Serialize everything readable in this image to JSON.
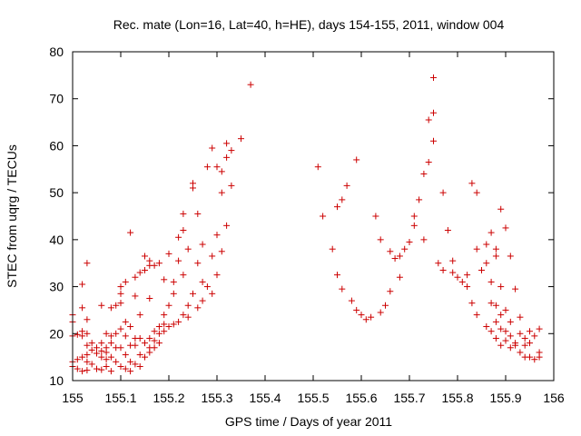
{
  "chart_data": {
    "type": "scatter",
    "title": "Rec. mate (Lon=16, Lat=40, h=HE), days 154-155, 2011, window 004",
    "xlabel": "GPS time / Days of year 2011",
    "ylabel": "STEC from uqrg / TECUs",
    "xlim": [
      155,
      156
    ],
    "ylim": [
      10,
      80
    ],
    "xticks": [
      155,
      155.1,
      155.2,
      155.3,
      155.4,
      155.5,
      155.6,
      155.7,
      155.8,
      155.9,
      156
    ],
    "xtick_labels": [
      "155",
      "155.1",
      "155.2",
      "155.3",
      "155.4",
      "155.5",
      "155.6",
      "155.7",
      "155.8",
      "155.9",
      "156"
    ],
    "yticks": [
      10,
      20,
      30,
      40,
      50,
      60,
      70,
      80
    ],
    "ytick_labels": [
      "10",
      "20",
      "30",
      "40",
      "50",
      "60",
      "70",
      "80"
    ],
    "marker": "+",
    "color": "#cc0000",
    "series": [
      {
        "name": "STEC",
        "points": [
          [
            155.0,
            22.5
          ],
          [
            155.0,
            24.0
          ],
          [
            155.0,
            19.5
          ],
          [
            155.0,
            14.0
          ],
          [
            155.0,
            13.0
          ],
          [
            155.01,
            14.5
          ],
          [
            155.01,
            12.5
          ],
          [
            155.01,
            19.8
          ],
          [
            155.02,
            30.5
          ],
          [
            155.02,
            25.5
          ],
          [
            155.02,
            20.5
          ],
          [
            155.02,
            19.5
          ],
          [
            155.02,
            15.0
          ],
          [
            155.02,
            12.0
          ],
          [
            155.03,
            35.0
          ],
          [
            155.03,
            23.0
          ],
          [
            155.03,
            20.0
          ],
          [
            155.03,
            17.5
          ],
          [
            155.03,
            15.5
          ],
          [
            155.03,
            14.0
          ],
          [
            155.03,
            12.2
          ],
          [
            155.04,
            18.0
          ],
          [
            155.04,
            16.5
          ],
          [
            155.04,
            13.5
          ],
          [
            155.05,
            17.0
          ],
          [
            155.05,
            15.8
          ],
          [
            155.05,
            12.5
          ],
          [
            155.06,
            26.0
          ],
          [
            155.06,
            18.0
          ],
          [
            155.06,
            16.3
          ],
          [
            155.06,
            15.0
          ],
          [
            155.06,
            12.3
          ],
          [
            155.07,
            20.0
          ],
          [
            155.07,
            17.0
          ],
          [
            155.07,
            16.0
          ],
          [
            155.07,
            14.5
          ],
          [
            155.07,
            13.0
          ],
          [
            155.08,
            25.5
          ],
          [
            155.08,
            19.5
          ],
          [
            155.08,
            18.0
          ],
          [
            155.08,
            15.0
          ],
          [
            155.08,
            12.0
          ],
          [
            155.09,
            26.0
          ],
          [
            155.09,
            20.0
          ],
          [
            155.09,
            17.0
          ],
          [
            155.09,
            14.0
          ],
          [
            155.1,
            30.0
          ],
          [
            155.1,
            28.5
          ],
          [
            155.1,
            26.5
          ],
          [
            155.1,
            21.0
          ],
          [
            155.1,
            17.0
          ],
          [
            155.1,
            13.0
          ],
          [
            155.11,
            31.0
          ],
          [
            155.11,
            22.5
          ],
          [
            155.11,
            19.5
          ],
          [
            155.11,
            15.5
          ],
          [
            155.11,
            12.5
          ],
          [
            155.12,
            41.5
          ],
          [
            155.12,
            21.5
          ],
          [
            155.12,
            17.5
          ],
          [
            155.12,
            14.0
          ],
          [
            155.12,
            12.0
          ],
          [
            155.13,
            32.0
          ],
          [
            155.13,
            28.0
          ],
          [
            155.13,
            19.0
          ],
          [
            155.13,
            17.5
          ],
          [
            155.13,
            13.5
          ],
          [
            155.14,
            33.0
          ],
          [
            155.14,
            24.0
          ],
          [
            155.14,
            19.0
          ],
          [
            155.14,
            15.5
          ],
          [
            155.14,
            13.0
          ],
          [
            155.15,
            36.5
          ],
          [
            155.15,
            33.5
          ],
          [
            155.15,
            18.0
          ],
          [
            155.15,
            15.0
          ],
          [
            155.16,
            35.5
          ],
          [
            155.16,
            34.5
          ],
          [
            155.16,
            27.5
          ],
          [
            155.16,
            19.0
          ],
          [
            155.16,
            17.0
          ],
          [
            155.16,
            16.0
          ],
          [
            155.17,
            34.5
          ],
          [
            155.17,
            20.5
          ],
          [
            155.17,
            18.5
          ],
          [
            155.17,
            17.0
          ],
          [
            155.18,
            35.0
          ],
          [
            155.18,
            21.5
          ],
          [
            155.18,
            20.0
          ],
          [
            155.18,
            18.0
          ],
          [
            155.19,
            31.5
          ],
          [
            155.19,
            24.0
          ],
          [
            155.19,
            22.0
          ],
          [
            155.19,
            20.5
          ],
          [
            155.2,
            37.0
          ],
          [
            155.2,
            26.0
          ],
          [
            155.2,
            21.5
          ],
          [
            155.21,
            31.0
          ],
          [
            155.21,
            28.5
          ],
          [
            155.21,
            22.0
          ],
          [
            155.22,
            40.5
          ],
          [
            155.22,
            35.5
          ],
          [
            155.22,
            22.5
          ],
          [
            155.23,
            45.5
          ],
          [
            155.23,
            42.0
          ],
          [
            155.23,
            32.5
          ],
          [
            155.23,
            24.0
          ],
          [
            155.24,
            38.0
          ],
          [
            155.24,
            26.0
          ],
          [
            155.24,
            23.5
          ],
          [
            155.25,
            52.0
          ],
          [
            155.25,
            51.0
          ],
          [
            155.25,
            28.5
          ],
          [
            155.26,
            45.5
          ],
          [
            155.26,
            35.0
          ],
          [
            155.26,
            25.5
          ],
          [
            155.27,
            39.0
          ],
          [
            155.27,
            31.0
          ],
          [
            155.27,
            27.0
          ],
          [
            155.28,
            55.5
          ],
          [
            155.28,
            30.0
          ],
          [
            155.29,
            59.5
          ],
          [
            155.29,
            36.5
          ],
          [
            155.29,
            28.5
          ],
          [
            155.3,
            55.5
          ],
          [
            155.3,
            41.0
          ],
          [
            155.3,
            32.5
          ],
          [
            155.31,
            54.5
          ],
          [
            155.31,
            50.0
          ],
          [
            155.31,
            37.5
          ],
          [
            155.32,
            60.5
          ],
          [
            155.32,
            57.5
          ],
          [
            155.32,
            43.0
          ],
          [
            155.33,
            59.0
          ],
          [
            155.33,
            51.5
          ],
          [
            155.35,
            61.5
          ],
          [
            155.37,
            73.0
          ],
          [
            155.51,
            55.5
          ],
          [
            155.52,
            45.0
          ],
          [
            155.54,
            38.0
          ],
          [
            155.55,
            32.5
          ],
          [
            155.55,
            47.0
          ],
          [
            155.56,
            48.5
          ],
          [
            155.56,
            29.5
          ],
          [
            155.57,
            51.5
          ],
          [
            155.58,
            27.0
          ],
          [
            155.59,
            57.0
          ],
          [
            155.59,
            25.0
          ],
          [
            155.6,
            24.0
          ],
          [
            155.61,
            23.0
          ],
          [
            155.62,
            23.5
          ],
          [
            155.63,
            45.0
          ],
          [
            155.64,
            24.5
          ],
          [
            155.64,
            40.0
          ],
          [
            155.65,
            26.0
          ],
          [
            155.66,
            37.5
          ],
          [
            155.66,
            29.0
          ],
          [
            155.67,
            36.0
          ],
          [
            155.68,
            32.0
          ],
          [
            155.68,
            36.5
          ],
          [
            155.69,
            38.0
          ],
          [
            155.7,
            39.5
          ],
          [
            155.71,
            45.0
          ],
          [
            155.71,
            43.0
          ],
          [
            155.72,
            48.5
          ],
          [
            155.73,
            54.0
          ],
          [
            155.73,
            40.0
          ],
          [
            155.74,
            56.5
          ],
          [
            155.74,
            65.5
          ],
          [
            155.75,
            74.5
          ],
          [
            155.75,
            67.0
          ],
          [
            155.75,
            61.0
          ],
          [
            155.76,
            35.0
          ],
          [
            155.77,
            50.0
          ],
          [
            155.77,
            33.5
          ],
          [
            155.78,
            42.0
          ],
          [
            155.79,
            35.5
          ],
          [
            155.79,
            33.0
          ],
          [
            155.8,
            32.0
          ],
          [
            155.81,
            31.0
          ],
          [
            155.82,
            32.5
          ],
          [
            155.82,
            30.0
          ],
          [
            155.83,
            52.0
          ],
          [
            155.83,
            26.5
          ],
          [
            155.84,
            50.0
          ],
          [
            155.84,
            38.0
          ],
          [
            155.84,
            24.0
          ],
          [
            155.85,
            33.5
          ],
          [
            155.86,
            39.0
          ],
          [
            155.86,
            35.0
          ],
          [
            155.86,
            21.5
          ],
          [
            155.87,
            41.5
          ],
          [
            155.87,
            31.0
          ],
          [
            155.87,
            26.5
          ],
          [
            155.87,
            20.5
          ],
          [
            155.88,
            38.0
          ],
          [
            155.88,
            36.5
          ],
          [
            155.88,
            26.0
          ],
          [
            155.88,
            22.5
          ],
          [
            155.88,
            19.0
          ],
          [
            155.89,
            46.5
          ],
          [
            155.89,
            30.0
          ],
          [
            155.89,
            24.0
          ],
          [
            155.89,
            21.0
          ],
          [
            155.89,
            17.5
          ],
          [
            155.9,
            42.5
          ],
          [
            155.9,
            25.0
          ],
          [
            155.9,
            20.5
          ],
          [
            155.9,
            18.5
          ],
          [
            155.91,
            36.5
          ],
          [
            155.91,
            22.5
          ],
          [
            155.91,
            19.5
          ],
          [
            155.91,
            17.0
          ],
          [
            155.92,
            29.5
          ],
          [
            155.92,
            18.0
          ],
          [
            155.92,
            17.5
          ],
          [
            155.93,
            23.5
          ],
          [
            155.93,
            20.0
          ],
          [
            155.93,
            16.0
          ],
          [
            155.94,
            19.0
          ],
          [
            155.94,
            17.5
          ],
          [
            155.94,
            15.0
          ],
          [
            155.95,
            20.5
          ],
          [
            155.95,
            18.0
          ],
          [
            155.95,
            15.0
          ],
          [
            155.96,
            19.5
          ],
          [
            155.96,
            14.5
          ],
          [
            155.97,
            21.0
          ],
          [
            155.97,
            16.0
          ],
          [
            155.97,
            15.0
          ]
        ]
      }
    ]
  }
}
